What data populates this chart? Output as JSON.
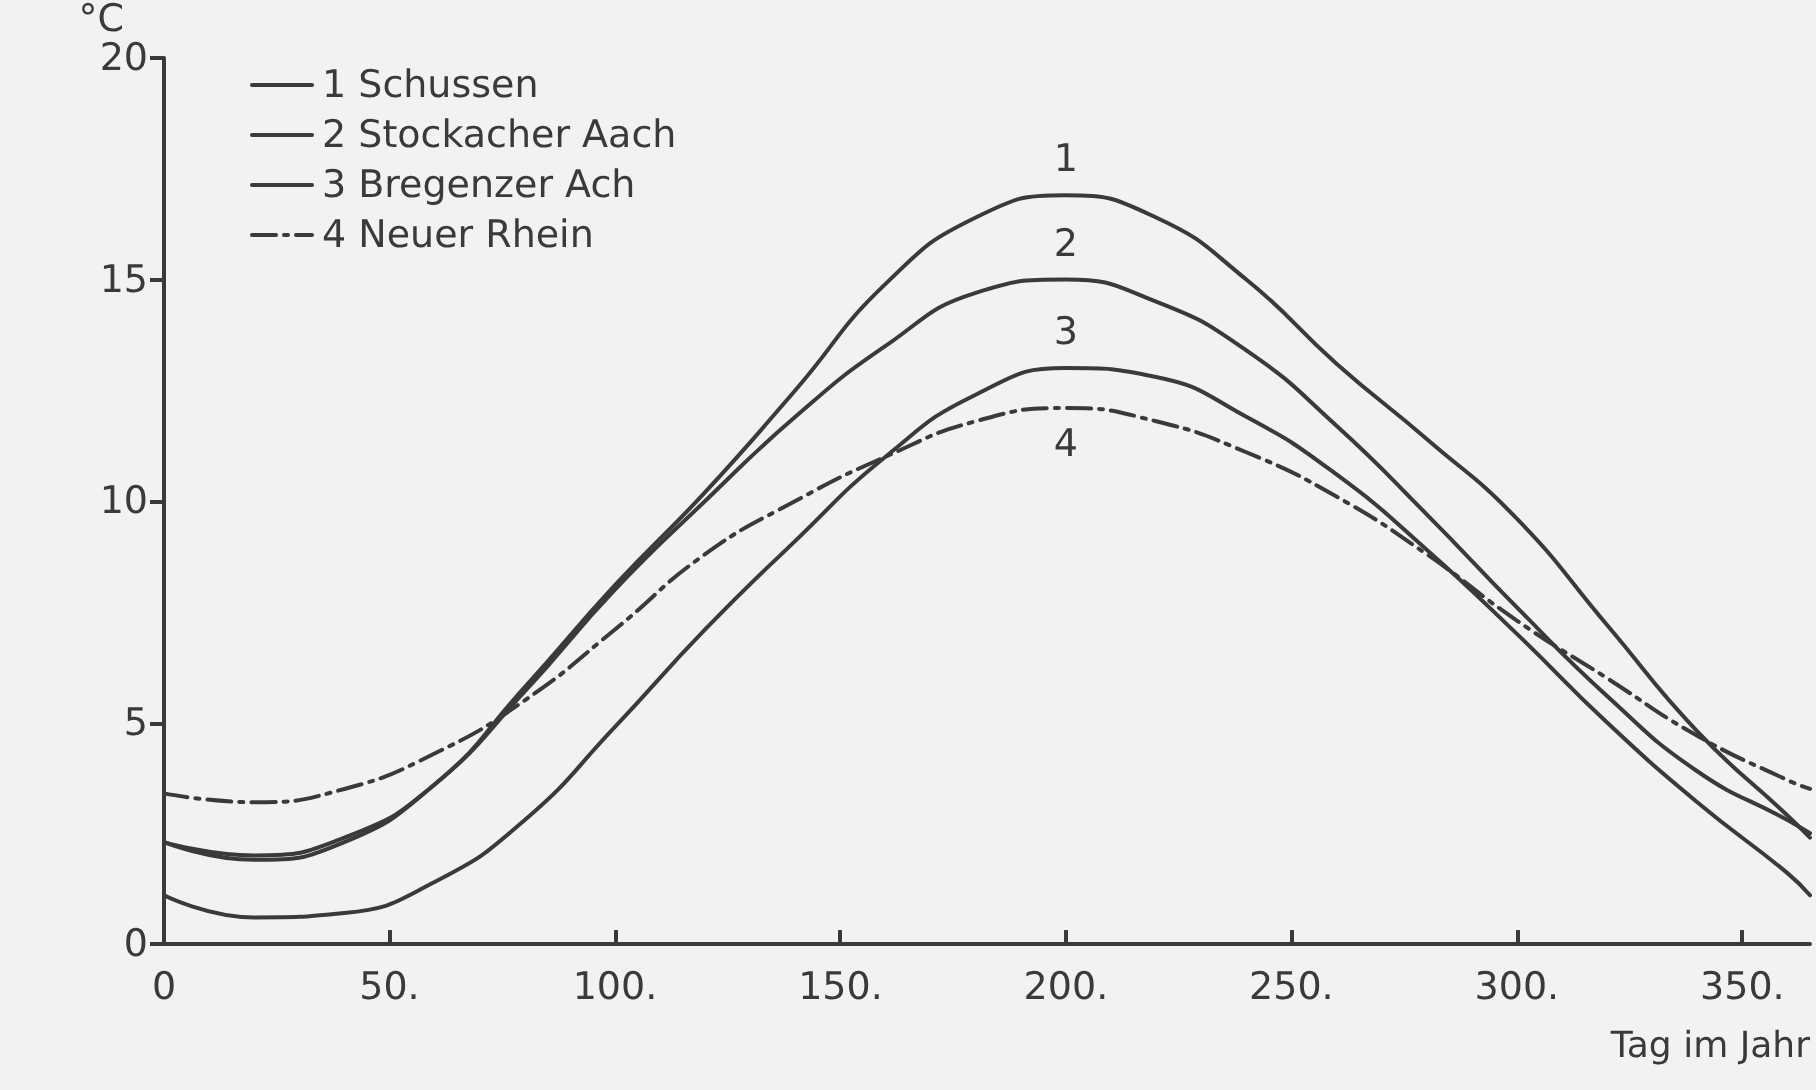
{
  "chart_data": {
    "type": "line",
    "xlabel": "Tag im Jahr",
    "ylabel": "°C",
    "xlim": [
      0,
      365
    ],
    "ylim": [
      0,
      20
    ],
    "xticks": [
      0,
      {
        "value": 50,
        "label": "50."
      },
      {
        "value": 100,
        "label": "100."
      },
      {
        "value": 150,
        "label": "150."
      },
      {
        "value": 200,
        "label": "200."
      },
      {
        "value": 250,
        "label": "250."
      },
      {
        "value": 300,
        "label": "300."
      },
      {
        "value": 350,
        "label": "350."
      }
    ],
    "yticks": [
      0,
      5,
      10,
      15,
      20
    ],
    "grid": false,
    "legend": "top left",
    "marker": "none",
    "x": [
      0,
      20,
      40,
      60,
      80,
      100,
      120,
      140,
      160,
      180,
      200,
      220,
      240,
      260,
      280,
      300,
      320,
      340,
      360,
      365
    ],
    "series": [
      {
        "name": "1 Schussen",
        "color": "#3a3a3a",
        "line_style": "solid",
        "values": [
          2.3,
          2.0,
          2.4,
          3.6,
          5.8,
          8.1,
          10.2,
          12.5,
          14.9,
          16.4,
          16.9,
          16.4,
          15.0,
          13.1,
          11.4,
          9.6,
          7.2,
          4.8,
          2.9,
          2.4
        ]
      },
      {
        "name": "2 Stockacher Aach",
        "color": "#3a3a3a",
        "line_style": "solid",
        "values": [
          2.3,
          1.9,
          2.3,
          3.6,
          5.7,
          8.0,
          10.0,
          11.9,
          13.5,
          14.7,
          15.0,
          14.5,
          13.4,
          11.7,
          9.7,
          7.6,
          5.6,
          3.9,
          2.8,
          2.5
        ]
      },
      {
        "name": "3 Bregenzer Ach",
        "color": "#3a3a3a",
        "line_style": "solid",
        "values": [
          1.1,
          0.6,
          0.7,
          1.4,
          2.8,
          4.9,
          7.1,
          9.1,
          11.0,
          12.4,
          13.0,
          12.8,
          11.9,
          10.6,
          8.9,
          7.0,
          5.0,
          3.2,
          1.6,
          1.1
        ]
      },
      {
        "name": "4 Neuer Rhein",
        "color": "#3a3a3a",
        "line_style": "dashed",
        "values": [
          3.4,
          3.2,
          3.5,
          4.3,
          5.5,
          7.1,
          8.8,
          10.0,
          11.0,
          11.8,
          12.1,
          11.8,
          11.1,
          10.1,
          8.8,
          7.3,
          6.0,
          4.7,
          3.7,
          3.5
        ]
      }
    ],
    "annotations": [
      "1",
      "2",
      "3",
      "4"
    ]
  }
}
